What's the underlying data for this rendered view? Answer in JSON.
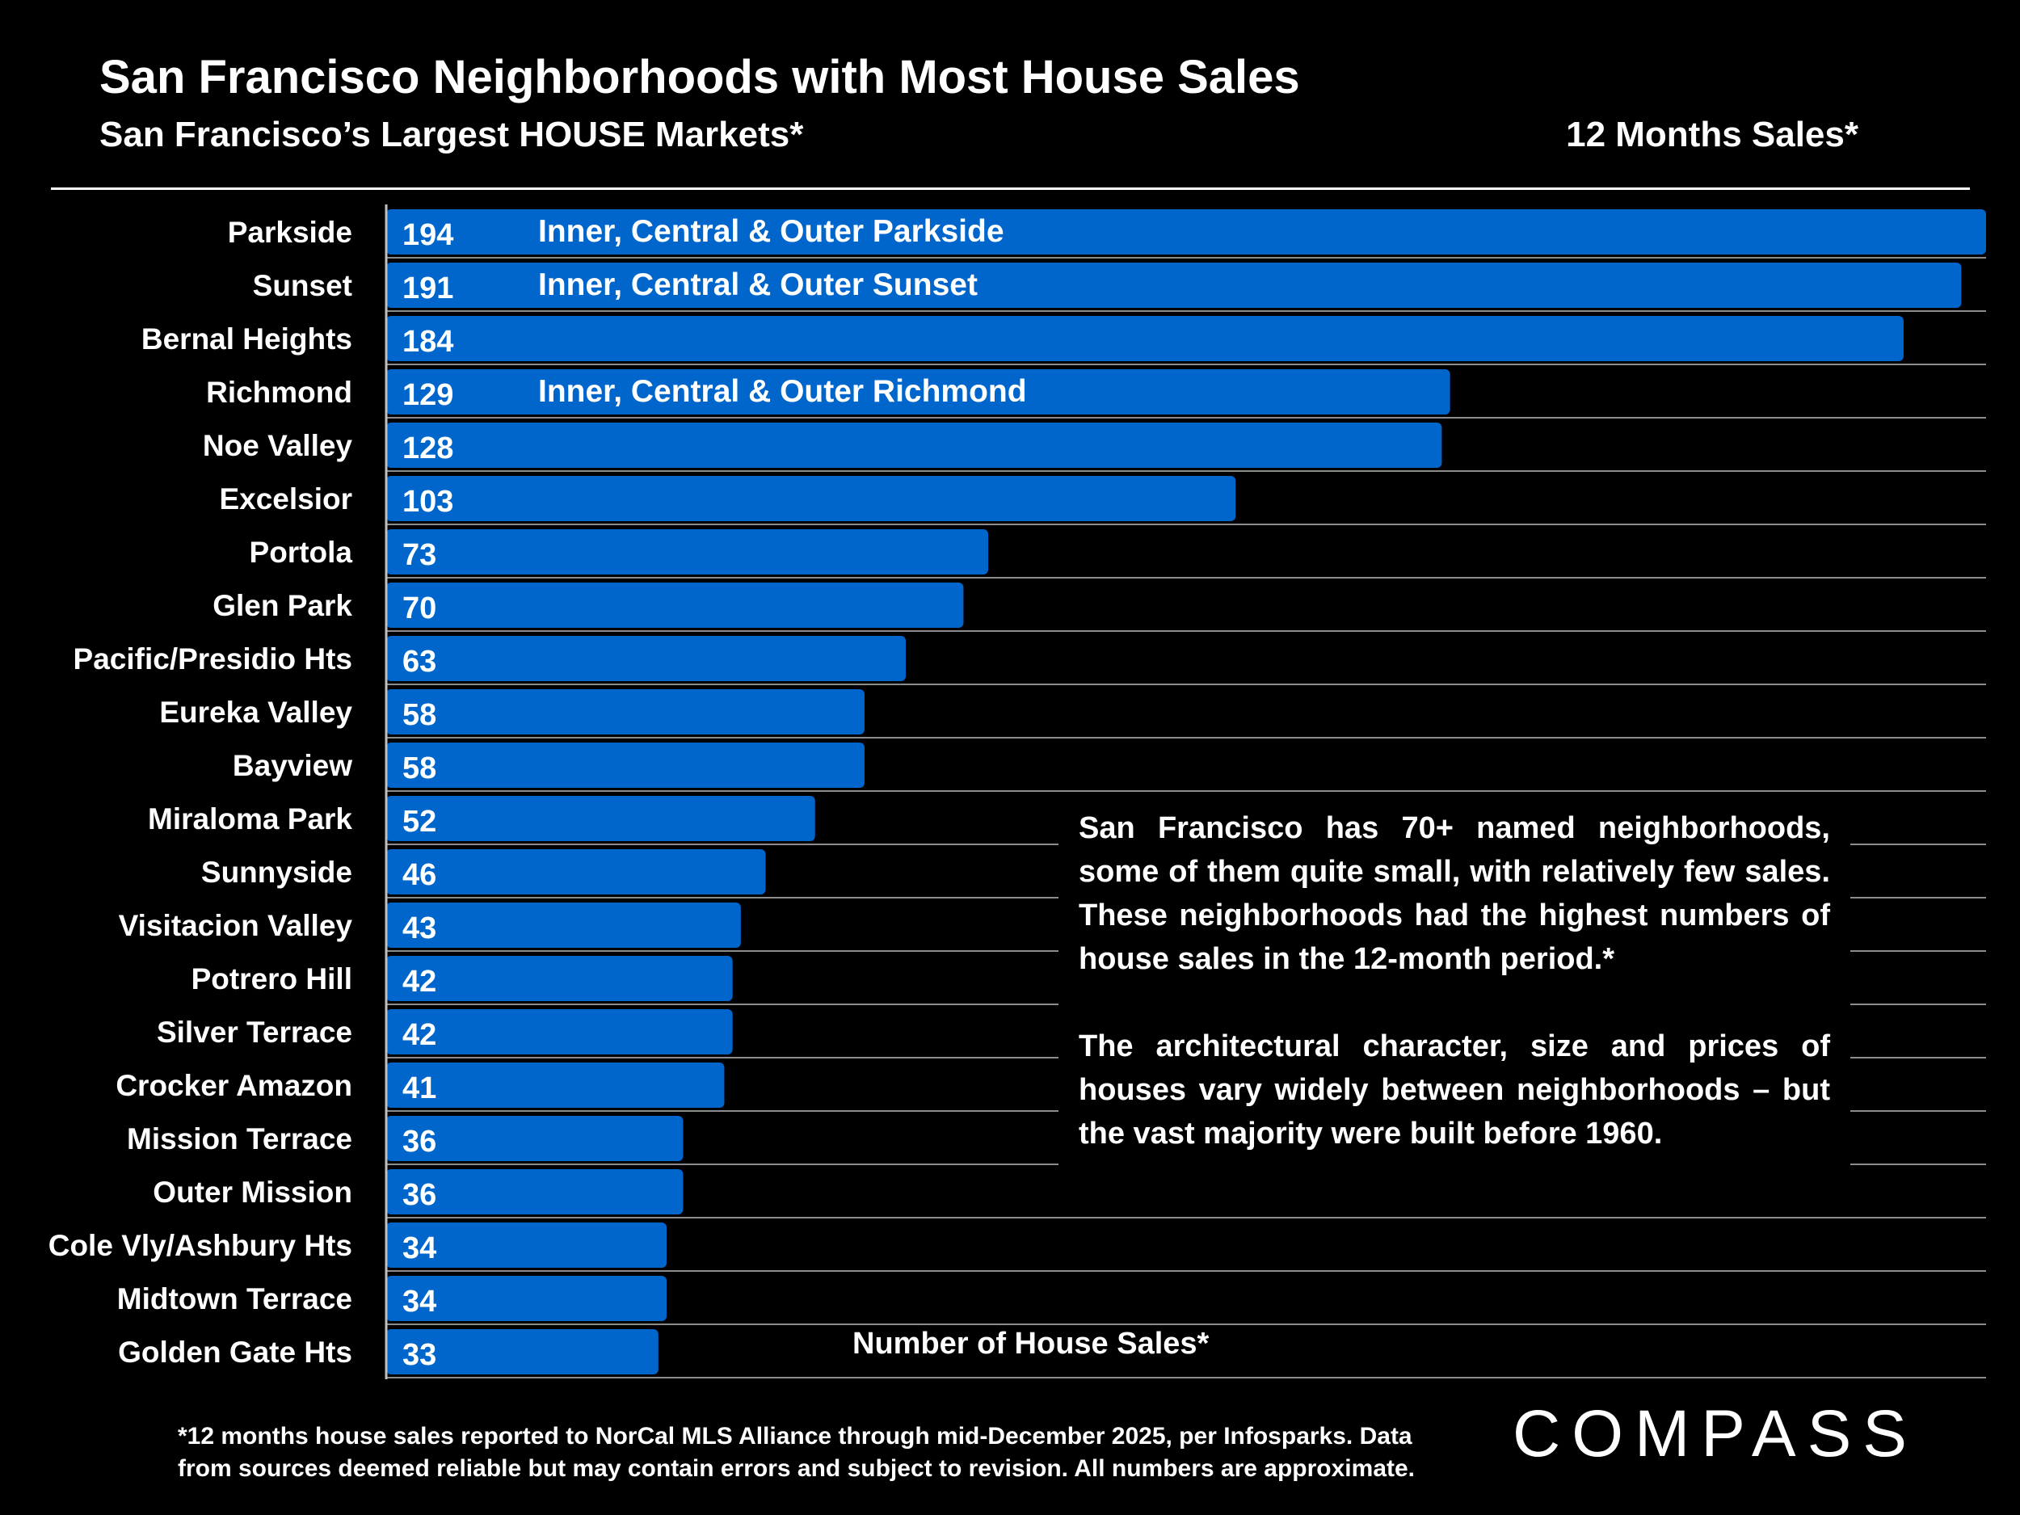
{
  "header": {
    "title": "San Francisco Neighborhoods with Most House Sales",
    "subtitle": "San Francisco’s Largest HOUSE Markets*",
    "period": "12 Months Sales*"
  },
  "chart_data": {
    "type": "bar",
    "orientation": "horizontal",
    "categories": [
      "Parkside",
      "Sunset",
      "Bernal Heights",
      "Richmond",
      "Noe Valley",
      "Excelsior",
      "Portola",
      "Glen Park",
      "Pacific/Presidio Hts",
      "Eureka Valley",
      "Bayview",
      "Miraloma Park",
      "Sunnyside",
      "Visitacion Valley",
      "Potrero Hill",
      "Silver Terrace",
      "Crocker Amazon",
      "Mission Terrace",
      "Outer Mission",
      "Cole Vly/Ashbury Hts",
      "Midtown Terrace",
      "Golden Gate Hts"
    ],
    "values": [
      194,
      191,
      184,
      129,
      128,
      103,
      73,
      70,
      63,
      58,
      58,
      52,
      46,
      43,
      42,
      42,
      41,
      36,
      36,
      34,
      34,
      33
    ],
    "bar_notes": [
      "Inner, Central & Outer Parkside",
      "Inner, Central & Outer Sunset",
      "",
      "Inner, Central & Outer Richmond",
      "",
      "",
      "",
      "",
      "",
      "",
      "",
      "",
      "",
      "",
      "",
      "",
      "",
      "",
      "",
      "",
      "",
      ""
    ],
    "xlabel": "Number of House Sales*",
    "xlim": [
      0,
      194
    ],
    "bar_color": "#0066cc",
    "background": "#000000",
    "grid": true
  },
  "note": {
    "paragraph1": "San Francisco has 70+ named neighborhoods, some of them quite small, with relatively few sales. These neighborhoods had the highest numbers of house sales in the 12-month period.*",
    "paragraph2": "The architectural character, size and prices of houses vary widely between neighborhoods – but the vast majority were built before 1960."
  },
  "footnote": "*12 months house sales reported to NorCal MLS Alliance through mid-December 2025, per Infosparks. Data from sources deemed reliable but may contain errors and subject to revision. All numbers are approximate.",
  "logo": "COMPASS"
}
